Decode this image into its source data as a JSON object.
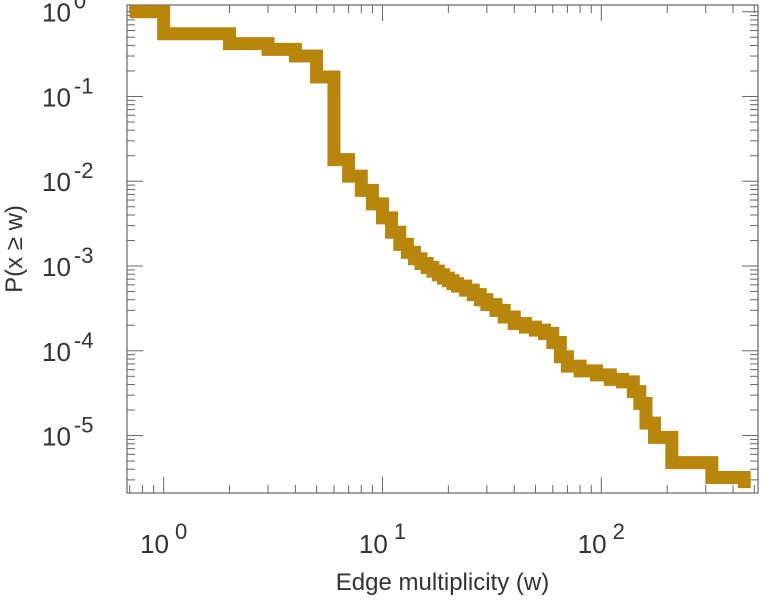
{
  "chart_data": {
    "type": "line",
    "step": true,
    "xscale": "log",
    "yscale": "log",
    "xlabel": "Edge multiplicity (w)",
    "ylabel": "P(x ≥ w)",
    "xlim": [
      0.68,
      520
    ],
    "ylim": [
      2.1e-06,
      1.2
    ],
    "grid": false,
    "x_ticks": [
      {
        "value": 1,
        "base": "10",
        "exp": "0"
      },
      {
        "value": 10,
        "base": "10",
        "exp": "1"
      },
      {
        "value": 100,
        "base": "10",
        "exp": "2"
      }
    ],
    "y_ticks": [
      {
        "value": 1,
        "base": "10",
        "exp": "0"
      },
      {
        "value": 0.1,
        "base": "10",
        "exp": "-1"
      },
      {
        "value": 0.01,
        "base": "10",
        "exp": "-2"
      },
      {
        "value": 0.001,
        "base": "10",
        "exp": "-3"
      },
      {
        "value": 0.0001,
        "base": "10",
        "exp": "-4"
      },
      {
        "value": 1e-05,
        "base": "10",
        "exp": "-5"
      }
    ],
    "series": [
      {
        "name": "P(x ≥ w)",
        "color": "#b8860b",
        "points": [
          [
            0.7,
            1.0
          ],
          [
            1,
            1.0
          ],
          [
            1,
            0.55
          ],
          [
            2,
            0.55
          ],
          [
            2,
            0.42
          ],
          [
            3,
            0.42
          ],
          [
            3,
            0.36
          ],
          [
            4,
            0.36
          ],
          [
            4,
            0.3
          ],
          [
            5,
            0.3
          ],
          [
            5,
            0.17
          ],
          [
            6,
            0.17
          ],
          [
            6,
            0.018
          ],
          [
            7,
            0.018
          ],
          [
            7,
            0.0115
          ],
          [
            8,
            0.0115
          ],
          [
            8,
            0.0078
          ],
          [
            9,
            0.0078
          ],
          [
            9,
            0.0054
          ],
          [
            10,
            0.0054
          ],
          [
            10,
            0.0037
          ],
          [
            11,
            0.0037
          ],
          [
            11,
            0.0025
          ],
          [
            12,
            0.0025
          ],
          [
            12,
            0.0018
          ],
          [
            13,
            0.0018
          ],
          [
            13,
            0.00145
          ],
          [
            14,
            0.00145
          ],
          [
            14,
            0.00122
          ],
          [
            15,
            0.00122
          ],
          [
            15,
            0.00107
          ],
          [
            16,
            0.00107
          ],
          [
            16,
            0.00096
          ],
          [
            17,
            0.00096
          ],
          [
            17,
            0.00087
          ],
          [
            18,
            0.00087
          ],
          [
            18,
            0.00079
          ],
          [
            19,
            0.00079
          ],
          [
            19,
            0.00072
          ],
          [
            20,
            0.00072
          ],
          [
            20,
            0.00067
          ],
          [
            21,
            0.00067
          ],
          [
            21,
            0.00062
          ],
          [
            22,
            0.00062
          ],
          [
            22,
            0.00058
          ],
          [
            24,
            0.00058
          ],
          [
            24,
            0.00052
          ],
          [
            26,
            0.00052
          ],
          [
            26,
            0.00046
          ],
          [
            28,
            0.00046
          ],
          [
            28,
            0.0004
          ],
          [
            30,
            0.0004
          ],
          [
            30,
            0.00035
          ],
          [
            33,
            0.00035
          ],
          [
            33,
            0.0003
          ],
          [
            36,
            0.0003
          ],
          [
            36,
            0.00025
          ],
          [
            40,
            0.00025
          ],
          [
            40,
            0.00021
          ],
          [
            45,
            0.00021
          ],
          [
            45,
            0.00019
          ],
          [
            50,
            0.00019
          ],
          [
            50,
            0.000175
          ],
          [
            55,
            0.000175
          ],
          [
            55,
            0.00016
          ],
          [
            60,
            0.00016
          ],
          [
            60,
            0.000125
          ],
          [
            65,
            0.000125
          ],
          [
            65,
            8.5e-05
          ],
          [
            70,
            8.5e-05
          ],
          [
            70,
            6.6e-05
          ],
          [
            80,
            6.6e-05
          ],
          [
            80,
            5.8e-05
          ],
          [
            95,
            5.8e-05
          ],
          [
            95,
            5.2e-05
          ],
          [
            110,
            5.2e-05
          ],
          [
            110,
            4.6e-05
          ],
          [
            125,
            4.6e-05
          ],
          [
            125,
            4.3e-05
          ],
          [
            140,
            4.3e-05
          ],
          [
            140,
            3.3e-05
          ],
          [
            150,
            3.3e-05
          ],
          [
            150,
            2.4e-05
          ],
          [
            160,
            2.4e-05
          ],
          [
            160,
            1.4e-05
          ],
          [
            175,
            1.4e-05
          ],
          [
            175,
            9.5e-06
          ],
          [
            210,
            9.5e-06
          ],
          [
            210,
            4.8e-06
          ],
          [
            320,
            4.8e-06
          ],
          [
            320,
            3.2e-06
          ],
          [
            450,
            3.2e-06
          ],
          [
            450,
            2.4e-06
          ]
        ]
      }
    ]
  }
}
